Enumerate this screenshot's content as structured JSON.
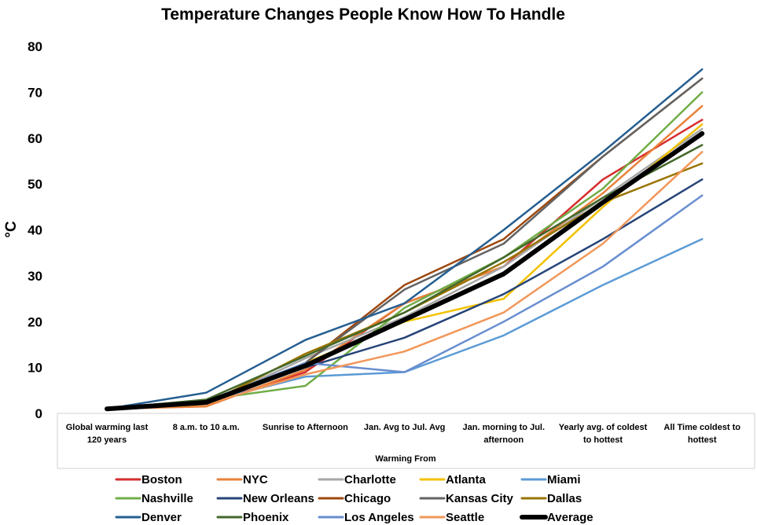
{
  "chart_data": {
    "type": "line",
    "title": "Temperature Changes People Know How To Handle",
    "ylabel": "°C",
    "xlabel": "Warming From",
    "ylim": [
      0,
      80
    ],
    "yticks": [
      "0",
      "10",
      "20",
      "30",
      "40",
      "50",
      "60",
      "70",
      "80"
    ],
    "grid": false,
    "legend_position": "bottom",
    "categories": [
      [
        "Global warming last",
        "120 years"
      ],
      [
        "8 a.m. to 10 a.m."
      ],
      [
        "Sunrise to Afternoon"
      ],
      [
        "Jan. Avg to Jul. Avg"
      ],
      [
        "Jan. morning to Jul.",
        "afternoon"
      ],
      [
        "Yearly avg. of coldest",
        "to hottest"
      ],
      [
        "All Time coldest to",
        "hottest"
      ]
    ],
    "series": [
      {
        "name": "Boston",
        "color": "#d62d2d",
        "values": [
          1,
          2,
          9,
          24,
          32,
          51,
          64
        ]
      },
      {
        "name": "NYC",
        "color": "#e8823a",
        "values": [
          1,
          1.5,
          9.5,
          24,
          32,
          48,
          67
        ]
      },
      {
        "name": "Charlotte",
        "color": "#a6a6a6",
        "values": [
          1,
          2,
          12,
          21,
          32,
          47,
          62
        ]
      },
      {
        "name": "Atlanta",
        "color": "#f2c200",
        "values": [
          1,
          2,
          11,
          20,
          25,
          45,
          63
        ]
      },
      {
        "name": "Miami",
        "color": "#5b9bd5",
        "values": [
          1,
          2.5,
          8,
          9,
          17,
          28,
          38
        ]
      },
      {
        "name": "Nashville",
        "color": "#70ad47",
        "values": [
          1,
          3,
          6,
          23,
          34,
          49,
          70
        ]
      },
      {
        "name": "New Orleans",
        "color": "#264478",
        "values": [
          1,
          2.5,
          10,
          16.5,
          26,
          38,
          51
        ]
      },
      {
        "name": "Chicago",
        "color": "#9e480e",
        "values": [
          1,
          2,
          11,
          28,
          38,
          56,
          73
        ]
      },
      {
        "name": "Kansas City",
        "color": "#636363",
        "values": [
          1,
          2.5,
          11,
          27,
          37,
          56,
          73
        ]
      },
      {
        "name": "Dallas",
        "color": "#997300",
        "values": [
          1,
          2,
          13,
          22,
          33,
          46,
          54.5
        ]
      },
      {
        "name": "Denver",
        "color": "#255e91",
        "values": [
          1,
          4.5,
          16,
          24,
          40,
          57,
          75
        ]
      },
      {
        "name": "Phoenix",
        "color": "#43682b",
        "values": [
          1,
          3,
          12.5,
          22,
          34,
          47,
          58.5
        ]
      },
      {
        "name": "Los Angeles",
        "color": "#698ed0",
        "values": [
          1,
          2.5,
          11,
          9,
          20,
          32,
          47.5
        ]
      },
      {
        "name": "Seattle",
        "color": "#f1975a",
        "values": [
          1,
          2,
          8.5,
          13.5,
          22,
          37,
          57
        ]
      },
      {
        "name": "Average",
        "color": "#000000",
        "values": [
          1,
          2.4,
          10.4,
          20.4,
          30.4,
          46,
          61
        ]
      }
    ]
  }
}
